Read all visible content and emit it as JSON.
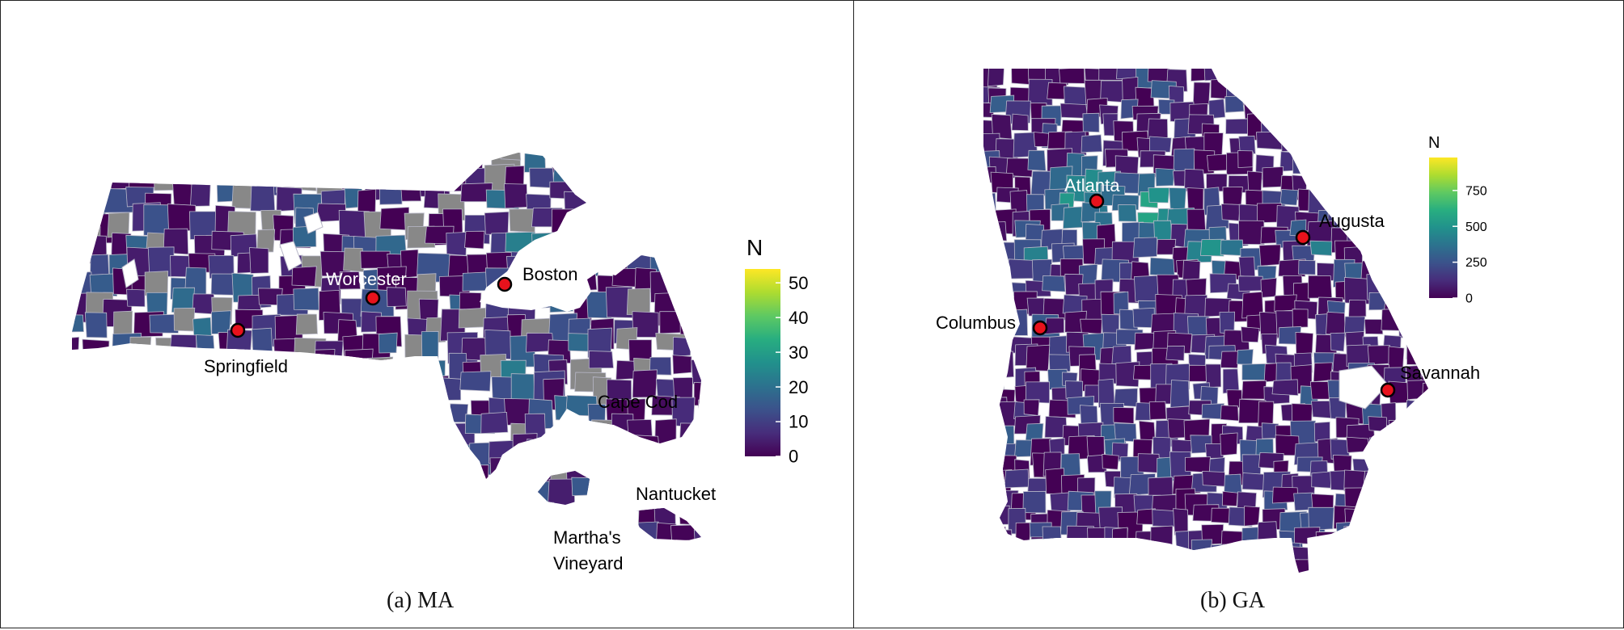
{
  "panels": [
    {
      "id": "ma",
      "caption": "(a)  MA",
      "legend": {
        "title": "N",
        "ticks": [
          "50",
          "40",
          "30",
          "20",
          "10",
          "0"
        ],
        "tick_values": [
          50,
          40,
          30,
          20,
          10,
          0
        ],
        "max": 54
      },
      "cities": [
        {
          "name": "Worcester",
          "label_color": "#ffffff"
        },
        {
          "name": "Boston",
          "label_color": "#000000"
        },
        {
          "name": "Springfield",
          "label_color": "#000000"
        }
      ],
      "regions": [
        {
          "name": "Cape Cod"
        },
        {
          "name": "Nantucket"
        },
        {
          "name_line1": "Martha's",
          "name_line2": "Vineyard"
        }
      ]
    },
    {
      "id": "ga",
      "caption": "(b)  GA",
      "legend": {
        "title": "N",
        "ticks": [
          "750",
          "500",
          "250",
          "0"
        ],
        "tick_values": [
          750,
          500,
          250,
          0
        ],
        "max": 980
      },
      "cities": [
        {
          "name": "Atlanta",
          "label_color": "#ffffff"
        },
        {
          "name": "Augusta",
          "label_color": "#000000"
        },
        {
          "name": "Columbus",
          "label_color": "#000000"
        },
        {
          "name": "Savannah",
          "label_color": "#000000"
        }
      ]
    }
  ],
  "colors": {
    "no_data": "#888888",
    "boundary": "#b8b8c8",
    "marker_fill": "#e8121c",
    "marker_stroke": "#000000",
    "viridis": [
      "#440154",
      "#472d7b",
      "#3b528b",
      "#2c728e",
      "#21918c",
      "#28ae80",
      "#5ec962",
      "#addc30",
      "#fde725"
    ]
  }
}
